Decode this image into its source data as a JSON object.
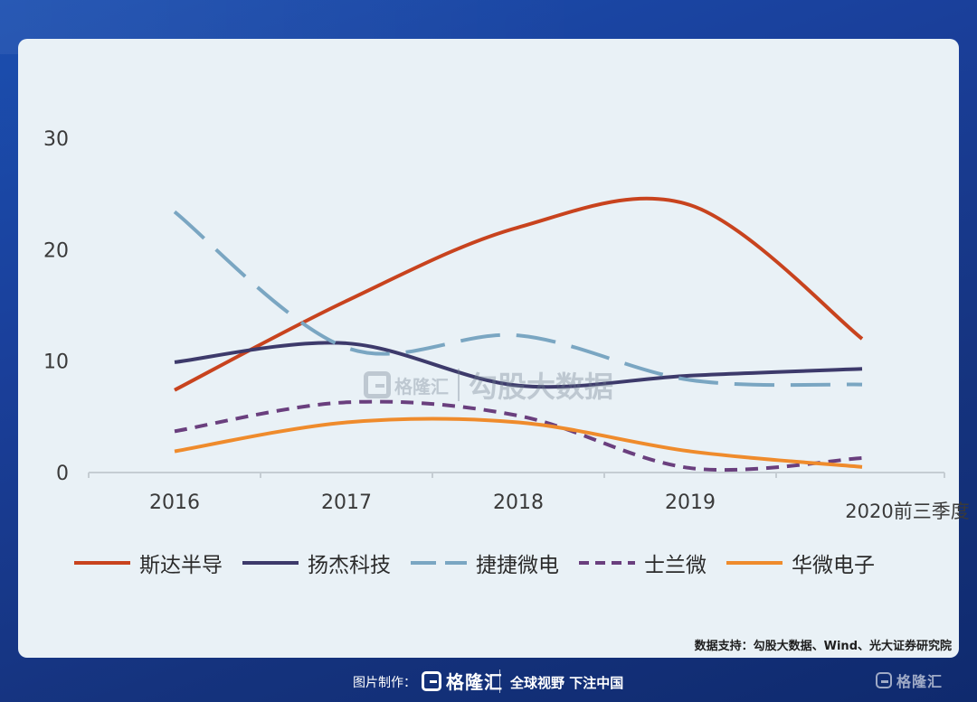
{
  "chart_data": {
    "type": "line",
    "title": "",
    "xlabel": "",
    "ylabel": "",
    "categories": [
      "2016",
      "2017",
      "2018",
      "2019",
      "2020前三季度"
    ],
    "ylim": [
      0,
      30
    ],
    "yticks": [
      "0",
      "10",
      "20",
      "30"
    ],
    "grid": false,
    "legend_position": "bottom",
    "series": [
      {
        "name": "斯达半导",
        "values": [
          7.4,
          15.4,
          22.0,
          24.0,
          12.0
        ],
        "color": "#c8431e",
        "dash": "solid"
      },
      {
        "name": "扬杰科技",
        "values": [
          9.9,
          11.6,
          7.8,
          8.7,
          9.3
        ],
        "color": "#3d3a6b",
        "dash": "solid"
      },
      {
        "name": "捷捷微电",
        "values": [
          23.4,
          11.2,
          12.3,
          8.3,
          7.9
        ],
        "color": "#7aa6c2",
        "dash": "longdash"
      },
      {
        "name": "士兰微",
        "values": [
          3.7,
          6.3,
          5.1,
          0.4,
          1.3
        ],
        "color": "#6a3f7e",
        "dash": "dash"
      },
      {
        "name": "华微电子",
        "values": [
          1.9,
          4.5,
          4.5,
          1.9,
          0.5
        ],
        "color": "#ef8b2c",
        "dash": "solid"
      }
    ]
  },
  "source_note": "数据支持：勾股大数据、Wind、光大证券研究院",
  "watermark": {
    "logo_text": "格隆汇",
    "name": "勾股大数据"
  },
  "footer": {
    "credit": "图片制作：",
    "brand": "格隆汇",
    "slogan": "全球视野 下注中国",
    "corner_brand": "格隆汇"
  }
}
